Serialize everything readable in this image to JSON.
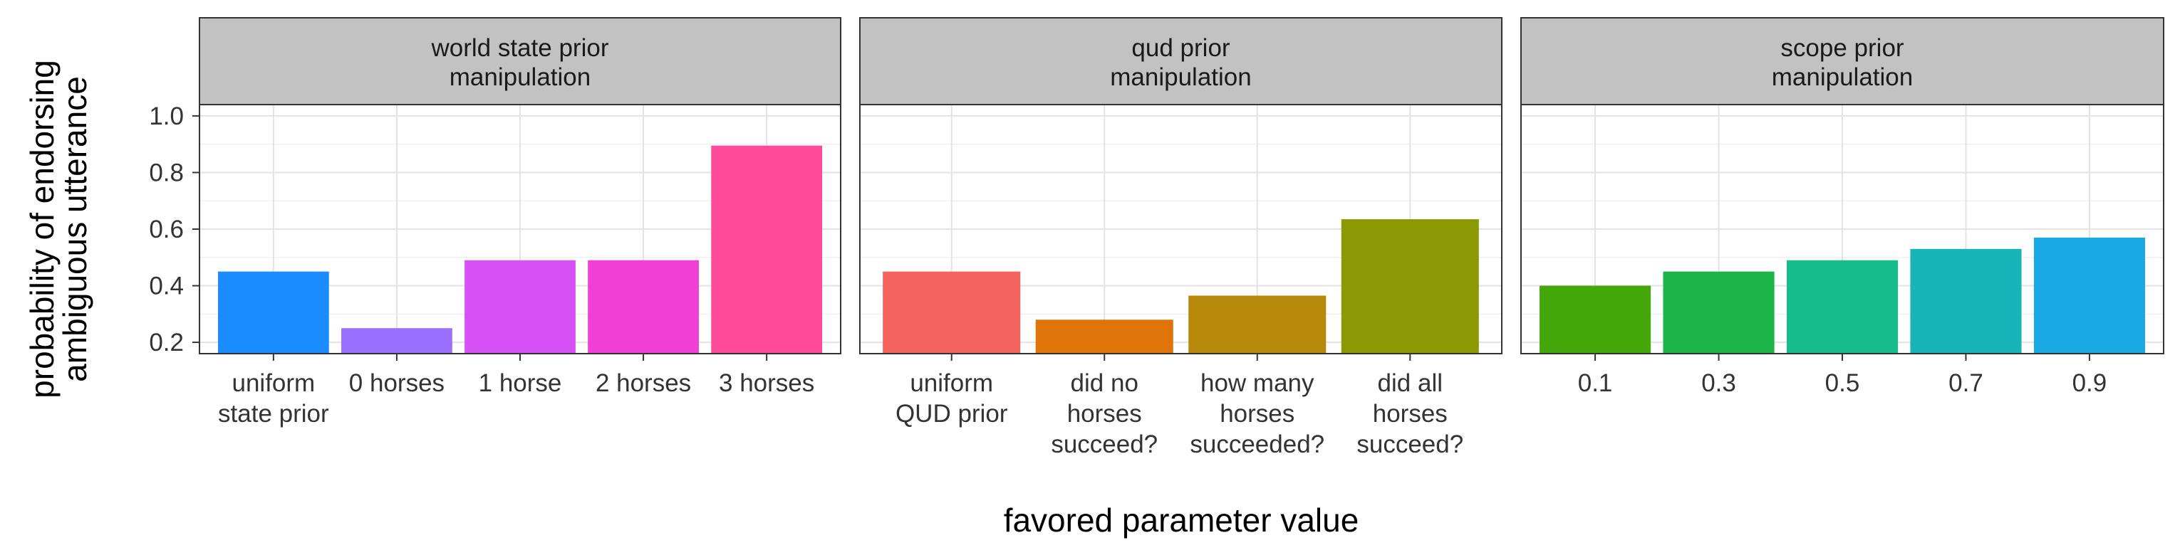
{
  "chart_data": {
    "type": "bar",
    "xlabel": "favored parameter value",
    "ylabel": [
      "probability of endorsing",
      "ambiguous utterance"
    ],
    "ylim": [
      0.16,
      1.04
    ],
    "yticks": [
      0.2,
      0.4,
      0.6,
      0.8,
      1.0
    ],
    "ytick_labels": [
      "0.2",
      "0.4",
      "0.6",
      "0.8",
      "1.0"
    ],
    "grid": true,
    "legend": "none",
    "panels": [
      {
        "title": [
          "world state prior",
          "manipulation"
        ],
        "categories": [
          [
            "uniform",
            "state prior"
          ],
          [
            "0 horses"
          ],
          [
            "1 horse"
          ],
          [
            "2 horses"
          ],
          [
            "3 horses"
          ]
        ],
        "values": [
          0.45,
          0.25,
          0.49,
          0.49,
          0.895
        ],
        "colors": [
          "#1a8cff",
          "#9a6fff",
          "#d650f5",
          "#f03fd4",
          "#ff4a9c"
        ]
      },
      {
        "title": [
          "qud prior",
          "manipulation"
        ],
        "categories": [
          [
            "uniform",
            "QUD prior"
          ],
          [
            "did no",
            "horses",
            "succeed?"
          ],
          [
            "how many",
            "horses",
            "succeeded?"
          ],
          [
            "did all",
            "horses",
            "succeed?"
          ]
        ],
        "values": [
          0.45,
          0.28,
          0.365,
          0.635
        ],
        "colors": [
          "#f4635d",
          "#df7508",
          "#b7890b",
          "#8a9a05"
        ]
      },
      {
        "title": [
          "scope prior",
          "manipulation"
        ],
        "categories": [
          [
            "0.1"
          ],
          [
            "0.3"
          ],
          [
            "0.5"
          ],
          [
            "0.7"
          ],
          [
            "0.9"
          ]
        ],
        "values": [
          0.4,
          0.45,
          0.49,
          0.53,
          0.57
        ],
        "colors": [
          "#44a80a",
          "#1bb547",
          "#17bc8a",
          "#18b4b9",
          "#1ba9e6"
        ]
      }
    ]
  }
}
